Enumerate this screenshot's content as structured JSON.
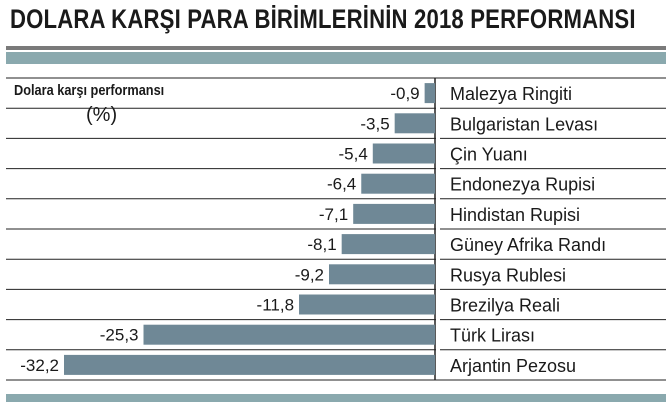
{
  "header": {
    "title": "DOLARA KARŞI PARA BİRİMLERİNİN 2018 PERFORMANSI"
  },
  "colors": {
    "bar": "#6f8896",
    "band": "#8aa9ae"
  },
  "chart_data": {
    "type": "bar",
    "orientation": "horizontal",
    "title": "DOLARA KARŞI PARA BİRİMLERİNİN 2018 PERFORMANSI",
    "subtitle": "Dolara karşı performansı",
    "unit": "(%)",
    "categories": [
      "Malezya Ringiti",
      "Bulgaristan Levası",
      "Çin Yuanı",
      "Endonezya Rupisi",
      "Hindistan Rupisi",
      "Güney Afrika Randı",
      "Rusya Rublesi",
      "Brezilya Reali",
      "Türk Lirası",
      "Arjantin Pezosu"
    ],
    "values": [
      -0.9,
      -3.5,
      -5.4,
      -6.4,
      -7.1,
      -8.1,
      -9.2,
      -11.8,
      -25.3,
      -32.2
    ],
    "value_labels": [
      "-0,9",
      "-3,5",
      "-5,4",
      "-6,4",
      "-7,1",
      "-8,1",
      "-9,2",
      "-11,8",
      "-25,3",
      "-32,2"
    ],
    "xlim": [
      -32.2,
      0
    ],
    "grid": false,
    "legend": "none"
  }
}
